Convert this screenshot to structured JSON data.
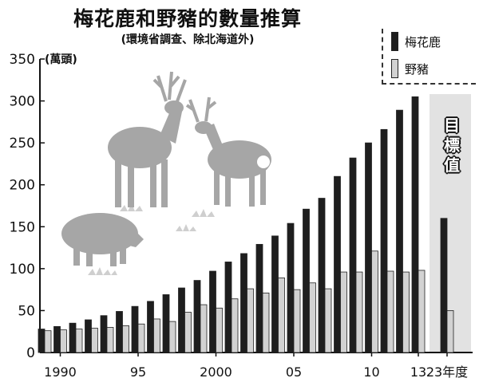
{
  "title": "梅花鹿和野豬的數量推算",
  "subtitle": "(環境省調查、除北海道外)",
  "unit_label": "(萬頭)",
  "target_label": "目標值",
  "colors": {
    "deer": "#1e1e1e",
    "boar": "#d2d2d2",
    "target_band": "#e2e2e2",
    "illustration": "#a6a6a6"
  },
  "illustration": {
    "icons": [
      "deer-icon",
      "deer-icon",
      "boar-icon"
    ]
  },
  "chart_data": {
    "type": "bar",
    "title": "梅花鹿和野豬的數量推算",
    "subtitle": "(環境省調查、除北海道外)",
    "ylabel": "(萬頭)",
    "ylim": [
      0,
      350
    ],
    "yticks": [
      0,
      50,
      100,
      150,
      200,
      250,
      300,
      350
    ],
    "categories": [
      "1989",
      "1990",
      "1991",
      "1992",
      "1993",
      "1994",
      "1995",
      "1996",
      "1997",
      "1998",
      "1999",
      "2000",
      "2001",
      "2002",
      "2003",
      "2004",
      "2005",
      "2006",
      "2007",
      "2008",
      "2009",
      "2010",
      "2011",
      "2012",
      "2013",
      "2023"
    ],
    "xtick_labels": [
      {
        "category": "1990",
        "text": "1990"
      },
      {
        "category": "1995",
        "text": "95"
      },
      {
        "category": "2000",
        "text": "2000"
      },
      {
        "category": "2005",
        "text": "05"
      },
      {
        "category": "2010",
        "text": "10"
      },
      {
        "category": "2013",
        "text": "13"
      },
      {
        "category": "2023",
        "text": "23年度"
      }
    ],
    "highlight_category": "2023",
    "highlight_text": "目標值",
    "legend_position": "top-right",
    "grid": false,
    "series": [
      {
        "name": "梅花鹿",
        "values": [
          28,
          31,
          35,
          39,
          44,
          49,
          55,
          61,
          69,
          77,
          86,
          97,
          108,
          118,
          129,
          139,
          154,
          171,
          184,
          210,
          232,
          250,
          266,
          289,
          305,
          160
        ]
      },
      {
        "name": "野豬",
        "values": [
          26,
          27,
          28,
          29,
          30,
          32,
          34,
          40,
          37,
          48,
          57,
          53,
          64,
          76,
          71,
          89,
          75,
          83,
          76,
          96,
          96,
          121,
          97,
          96,
          98,
          50
        ]
      }
    ]
  }
}
